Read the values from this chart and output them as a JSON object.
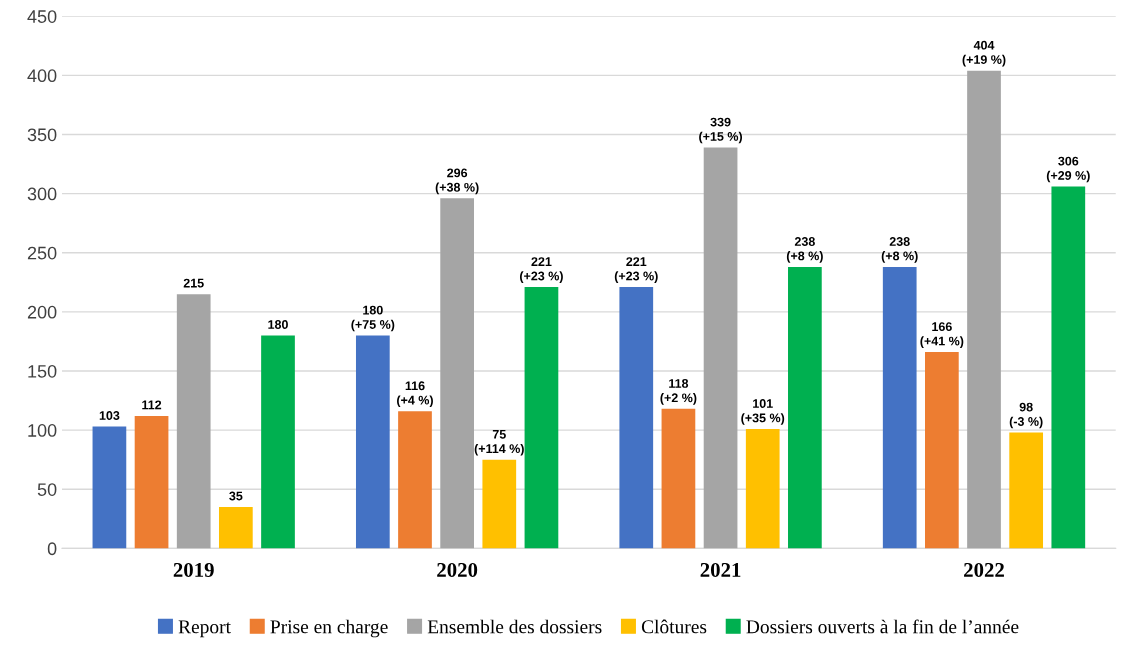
{
  "chart_data": {
    "type": "bar",
    "categories": [
      "2019",
      "2020",
      "2021",
      "2022"
    ],
    "series": [
      {
        "name": "Report",
        "color": "#4472c4",
        "values": [
          103,
          180,
          221,
          238
        ],
        "value_labels": [
          "103",
          "180\n(+75 %)",
          "221\n(+23 %)",
          "238\n(+8 %)"
        ]
      },
      {
        "name": "Prise en charge",
        "color": "#ed7d31",
        "values": [
          112,
          116,
          118,
          166
        ],
        "value_labels": [
          "112",
          "116\n(+4 %)",
          "118\n(+2 %)",
          "166\n(+41 %)"
        ]
      },
      {
        "name": "Ensemble des dossiers",
        "color": "#a5a5a5",
        "values": [
          215,
          296,
          339,
          404
        ],
        "value_labels": [
          "215",
          "296\n(+38 %)",
          "339\n(+15 %)",
          "404\n(+19 %)"
        ]
      },
      {
        "name": "Clôtures",
        "color": "#ffc000",
        "values": [
          35,
          75,
          101,
          98
        ],
        "value_labels": [
          "35",
          "75\n(+114 %)",
          "101\n(+35 %)",
          "98\n(-3 %)"
        ]
      },
      {
        "name": "Dossiers ouverts à la fin de l’année",
        "color": "#00b050",
        "values": [
          180,
          221,
          238,
          306
        ],
        "value_labels": [
          "180",
          "221\n(+23 %)",
          "238\n(+8 %)",
          "306\n(+29 %)"
        ]
      }
    ],
    "ylim": [
      0,
      450
    ],
    "yticks": [
      0,
      50,
      100,
      150,
      200,
      250,
      300,
      350,
      400,
      450
    ],
    "grid": "y",
    "legend": "bottom"
  }
}
